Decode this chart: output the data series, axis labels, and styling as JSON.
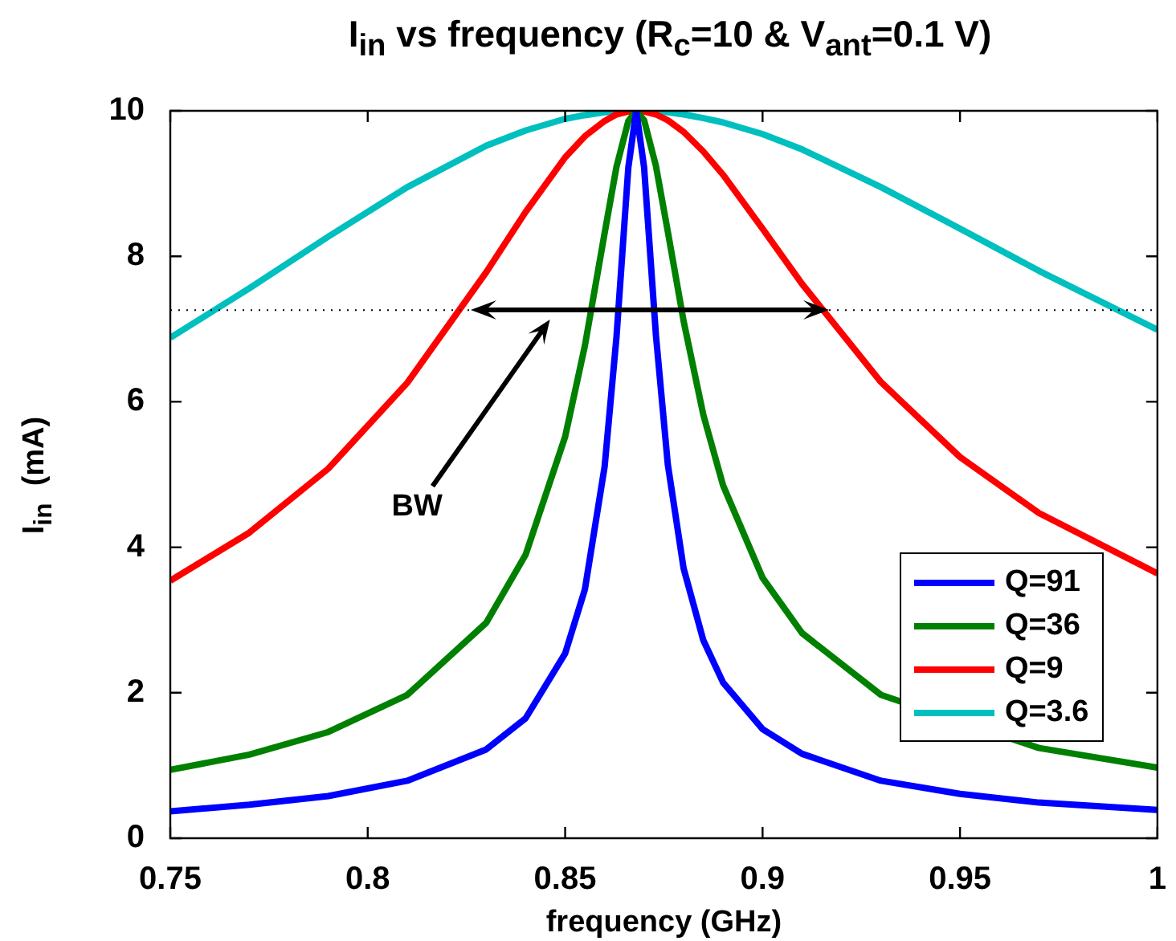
{
  "chart_data": {
    "type": "line",
    "title": "I$_{in}$ vs frequency (R$_{c}$=10 & V$_{ant}$=0.1 V)",
    "xlabel": "frequency (GHz)",
    "ylabel": "I$_{in}$  (mA)",
    "x": [
      0.75,
      0.77,
      0.79,
      0.81,
      0.83,
      0.84,
      0.85,
      0.855,
      0.86,
      0.863,
      0.866,
      0.868,
      0.87,
      0.873,
      0.876,
      0.88,
      0.885,
      0.89,
      0.9,
      0.91,
      0.93,
      0.95,
      0.97,
      1.0
    ],
    "series": [
      {
        "name": "Q=91",
        "color": "#0000ff",
        "values": [
          0.37,
          0.46,
          0.58,
          0.79,
          1.22,
          1.65,
          2.54,
          3.42,
          5.11,
          6.89,
          9.22,
          10,
          9.22,
          6.91,
          5.14,
          3.71,
          2.72,
          2.14,
          1.5,
          1.16,
          0.79,
          0.61,
          0.49,
          0.39
        ]
      },
      {
        "name": "Q=36",
        "color": "#008000",
        "values": [
          0.94,
          1.15,
          1.46,
          1.97,
          2.96,
          3.9,
          5.52,
          6.77,
          8.32,
          9.23,
          9.86,
          10,
          9.87,
          9.24,
          8.34,
          7.11,
          5.82,
          4.85,
          3.58,
          2.82,
          1.97,
          null,
          1.24,
          0.97
        ]
      },
      {
        "name": "Q=9",
        "color": "#ff0000",
        "values": [
          3.54,
          4.2,
          5.08,
          6.26,
          7.78,
          8.61,
          9.36,
          9.65,
          9.86,
          9.95,
          9.99,
          10,
          9.99,
          9.95,
          9.87,
          9.71,
          9.44,
          9.12,
          8.38,
          7.62,
          6.27,
          5.24,
          4.47,
          3.64
        ]
      },
      {
        "name": "Q=3.6",
        "color": "#00bfbf",
        "values": [
          6.88,
          7.56,
          8.27,
          8.95,
          9.52,
          9.73,
          9.89,
          9.94,
          9.98,
          9.99,
          10,
          10,
          10,
          9.99,
          9.98,
          9.95,
          9.9,
          9.84,
          9.68,
          9.47,
          8.95,
          8.38,
          7.8,
          6.99
        ]
      }
    ],
    "xlim": [
      0.75,
      1.0
    ],
    "xticks": [
      0.75,
      0.8,
      0.85,
      0.9,
      0.95,
      1
    ],
    "ylim": [
      0,
      10
    ],
    "yticks": [
      0,
      2,
      4,
      6,
      8,
      10
    ],
    "ref_lines": [
      {
        "axis": "y",
        "value": 7.26,
        "color": "#000000",
        "line_style": "dotted"
      }
    ],
    "annotations": [
      "BW"
    ],
    "legend": "bottom right",
    "marker": "none",
    "line_style": "solid"
  }
}
